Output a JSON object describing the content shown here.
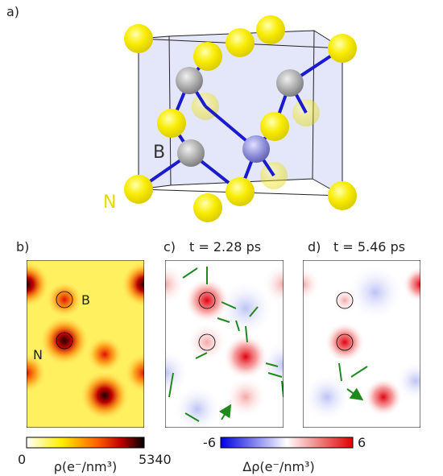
{
  "panels": {
    "a": {
      "label": "a)",
      "atom_labels": [
        "B",
        "N"
      ]
    },
    "b": {
      "label": "b)",
      "atom_labels": [
        "B",
        "N"
      ]
    },
    "c": {
      "label": "c)",
      "time": "t = 2.28 ps"
    },
    "d": {
      "label": "d)",
      "time": "t = 5.46 ps"
    }
  },
  "colorbars": [
    {
      "min": "0",
      "max": "5340",
      "label": "ρ(e⁻/nm³)"
    },
    {
      "min": "-6",
      "max": "6",
      "label": "Δρ(e⁻/nm³)"
    }
  ]
}
